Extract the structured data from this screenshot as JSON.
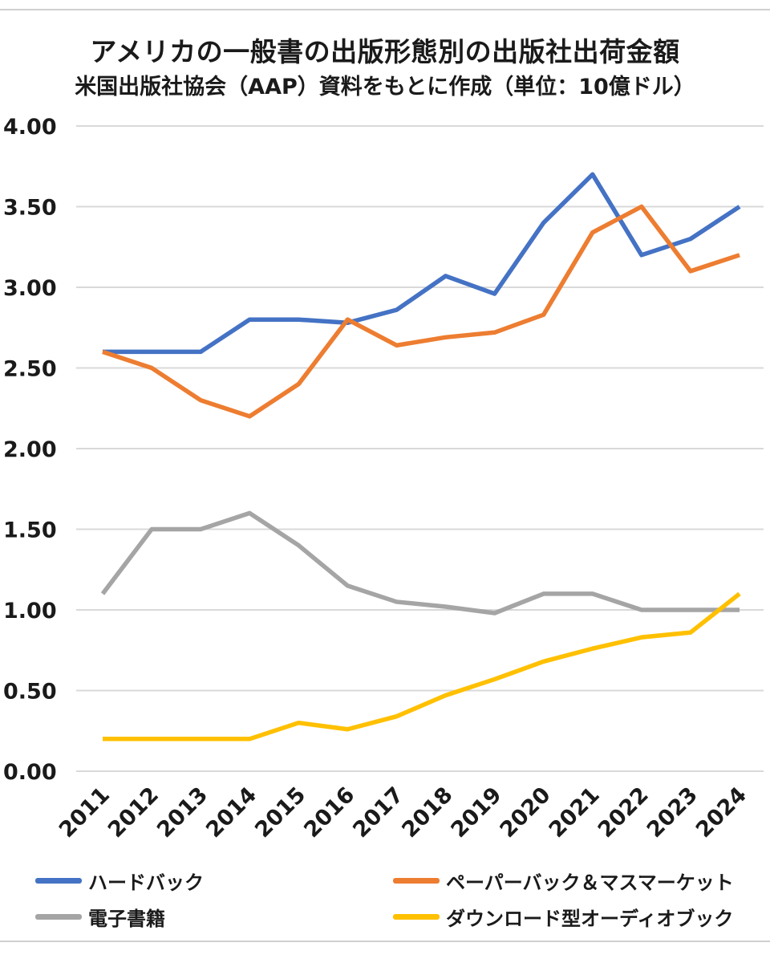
{
  "header": {
    "title": "アメリカの一般書の出版形態別の出版社出荷金額",
    "subtitle": "米国出版社協会（AAP）資料をもとに作成（単位：10億ドル）"
  },
  "chart_data": {
    "type": "line",
    "title": "アメリカの一般書の出版形態別の出版社出荷金額",
    "subtitle": "米国出版社協会（AAP）資料をもとに作成（単位：10億ドル）",
    "xlabel": "",
    "ylabel": "",
    "x": [
      "2011",
      "2012",
      "2013",
      "2014",
      "2015",
      "2016",
      "2017",
      "2018",
      "2019",
      "2020",
      "2021",
      "2022",
      "2023",
      "2024"
    ],
    "ylim": [
      0,
      4
    ],
    "yticks": [
      "0.00",
      "0.50",
      "1.00",
      "1.50",
      "2.00",
      "2.50",
      "3.00",
      "3.50",
      "4.00"
    ],
    "grid": true,
    "legend_position": "bottom",
    "series": [
      {
        "name": "ハードバック",
        "color": "#4472c4",
        "values": [
          2.6,
          2.6,
          2.6,
          2.8,
          2.8,
          2.78,
          2.86,
          3.07,
          2.96,
          3.4,
          3.7,
          3.2,
          3.3,
          3.5
        ]
      },
      {
        "name": "ペーパーバック＆マスマーケット",
        "color": "#ed7d31",
        "values": [
          2.6,
          2.5,
          2.3,
          2.2,
          2.4,
          2.8,
          2.64,
          2.69,
          2.72,
          2.83,
          3.34,
          3.5,
          3.1,
          3.2
        ]
      },
      {
        "name": "電子書籍",
        "color": "#a5a5a5",
        "values": [
          1.1,
          1.5,
          1.5,
          1.6,
          1.4,
          1.15,
          1.05,
          1.02,
          0.98,
          1.1,
          1.1,
          1.0,
          1.0,
          1.0
        ]
      },
      {
        "name": "ダウンロード型オーディオブック",
        "color": "#ffc000",
        "values": [
          0.2,
          0.2,
          0.2,
          0.2,
          0.3,
          0.26,
          0.34,
          0.47,
          0.57,
          0.68,
          0.76,
          0.83,
          0.86,
          1.1
        ]
      }
    ]
  }
}
